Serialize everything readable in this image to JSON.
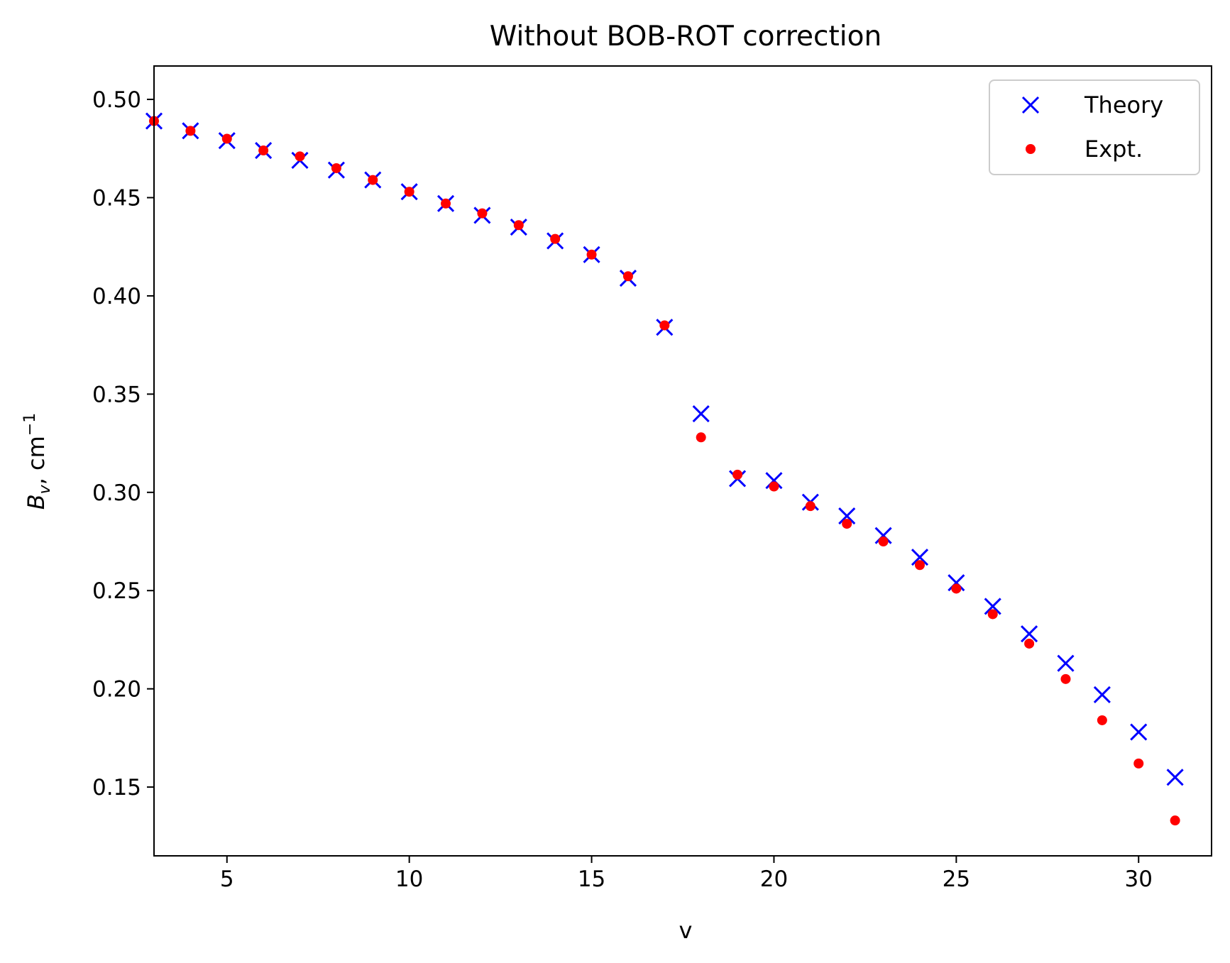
{
  "chart_data": {
    "type": "scatter",
    "title": "Without BOB-ROT correction",
    "xlabel": "v",
    "ylabel": {
      "symbol": "B",
      "subscript": "v",
      "rest": ", cm",
      "superscript": "−1"
    },
    "xlim": [
      3,
      32
    ],
    "ylim": [
      0.115,
      0.517
    ],
    "xticks": [
      5,
      10,
      15,
      20,
      25,
      30
    ],
    "xtick_labels": [
      "5",
      "10",
      "15",
      "20",
      "25",
      "30"
    ],
    "yticks": [
      0.15,
      0.2,
      0.25,
      0.3,
      0.35,
      0.4,
      0.45,
      0.5
    ],
    "ytick_labels": [
      "0.15",
      "0.20",
      "0.25",
      "0.30",
      "0.35",
      "0.40",
      "0.45",
      "0.50"
    ],
    "legend_position": "top-right",
    "x": [
      3,
      4,
      5,
      6,
      7,
      8,
      9,
      10,
      11,
      12,
      13,
      14,
      15,
      16,
      17,
      18,
      19,
      20,
      21,
      22,
      23,
      24,
      25,
      26,
      27,
      28,
      29,
      30,
      31
    ],
    "series": [
      {
        "name": "Theory",
        "marker": "x",
        "color": "#0000ff",
        "values": [
          0.489,
          0.484,
          0.479,
          0.474,
          0.469,
          0.464,
          0.459,
          0.453,
          0.447,
          0.441,
          0.435,
          0.428,
          0.421,
          0.409,
          0.384,
          0.34,
          0.307,
          0.306,
          0.295,
          0.288,
          0.278,
          0.267,
          0.254,
          0.242,
          0.228,
          0.213,
          0.197,
          0.178,
          0.155
        ]
      },
      {
        "name": "Expt.",
        "marker": "dot",
        "color": "#ff0000",
        "values": [
          0.489,
          0.484,
          0.48,
          0.474,
          0.471,
          0.465,
          0.459,
          0.453,
          0.447,
          0.442,
          0.436,
          0.429,
          0.421,
          0.41,
          0.385,
          0.328,
          0.309,
          0.303,
          0.293,
          0.284,
          0.275,
          0.263,
          0.251,
          0.238,
          0.223,
          0.205,
          0.184,
          0.162,
          0.133
        ]
      }
    ]
  }
}
